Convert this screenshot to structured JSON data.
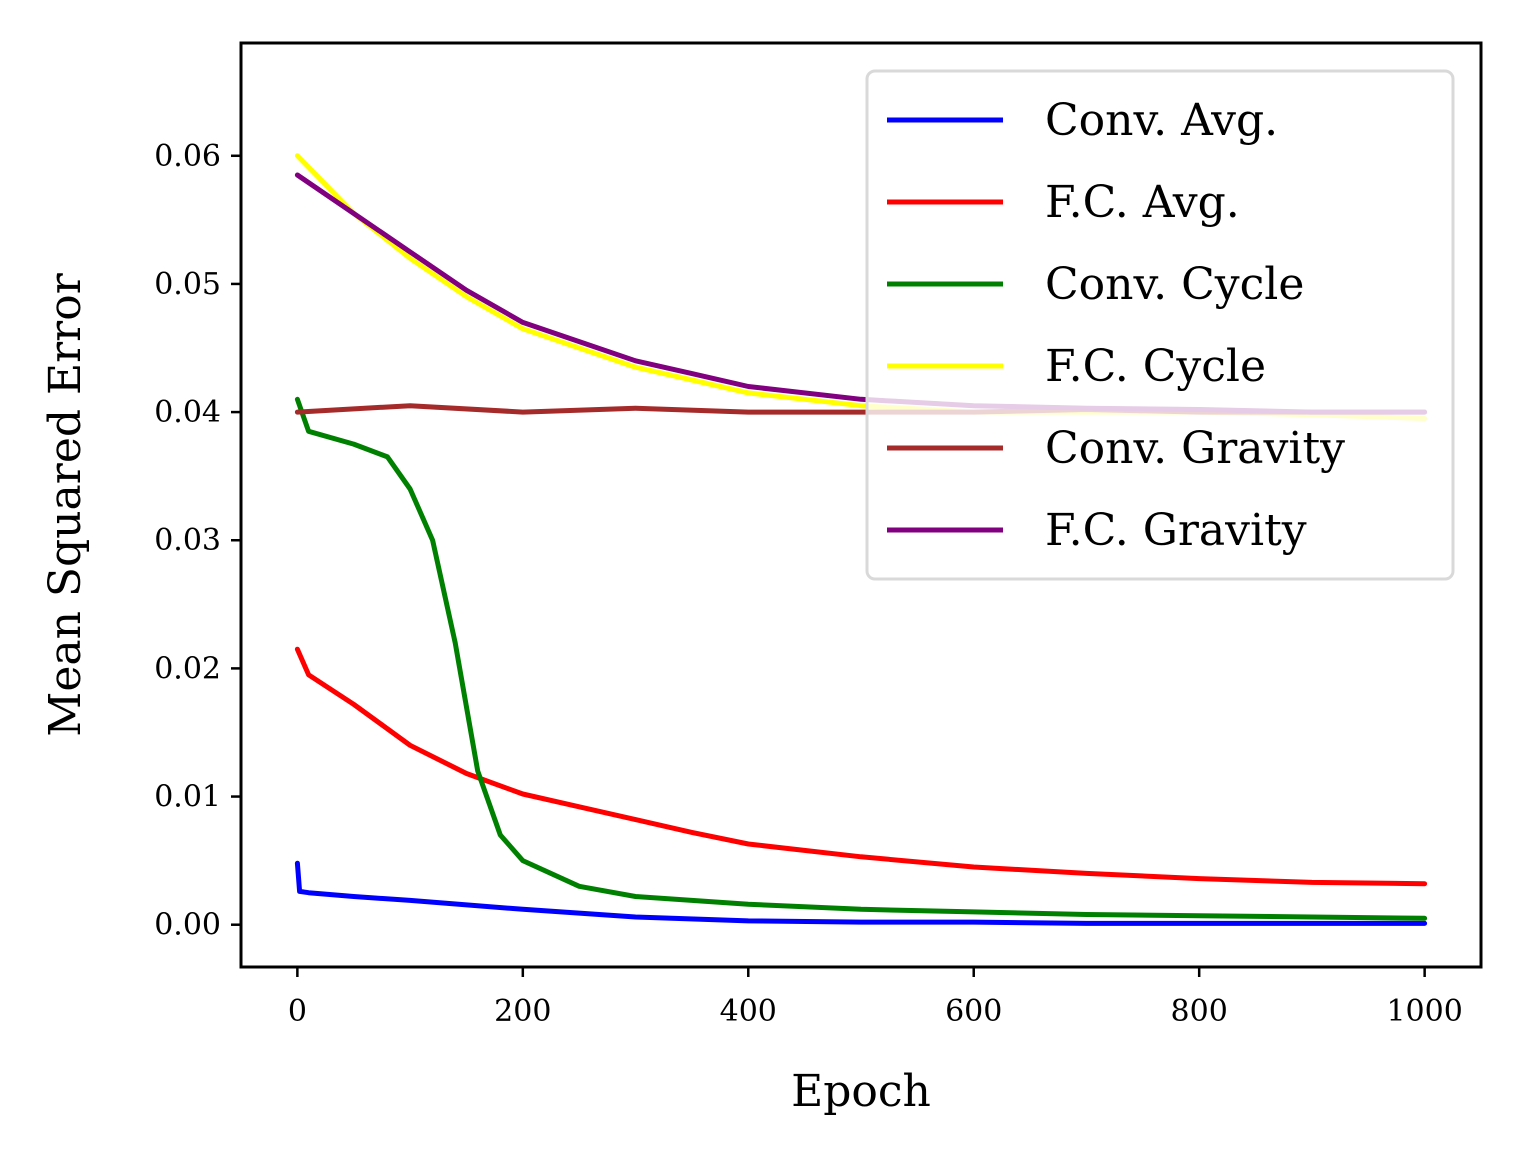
{
  "chart_data": {
    "type": "line",
    "title": "",
    "xlabel": "Epoch",
    "ylabel": "Mean Squared Error",
    "xlim": [
      -50,
      1050
    ],
    "ylim": [
      -0.0033,
      0.0688
    ],
    "xticks": [
      0,
      200,
      400,
      600,
      800,
      1000
    ],
    "xtick_labels": [
      "0",
      "200",
      "400",
      "600",
      "800",
      "1000"
    ],
    "yticks": [
      0.0,
      0.01,
      0.02,
      0.03,
      0.04,
      0.05,
      0.06
    ],
    "ytick_labels": [
      "0.00",
      "0.01",
      "0.02",
      "0.03",
      "0.04",
      "0.05",
      "0.06"
    ],
    "grid": false,
    "legend_position": "top-right",
    "series": [
      {
        "name": "Conv. Avg.",
        "color": "#0000ff",
        "x": [
          0,
          2,
          10,
          50,
          100,
          200,
          300,
          400,
          500,
          600,
          700,
          800,
          900,
          1000
        ],
        "values": [
          0.0048,
          0.0026,
          0.0025,
          0.0022,
          0.0019,
          0.0012,
          0.0006,
          0.0003,
          0.0002,
          0.0002,
          0.0001,
          0.0001,
          0.0001,
          0.0001
        ]
      },
      {
        "name": "F.C. Avg.",
        "color": "#ff0000",
        "x": [
          0,
          10,
          50,
          100,
          150,
          200,
          250,
          300,
          350,
          400,
          500,
          600,
          700,
          800,
          900,
          1000
        ],
        "values": [
          0.0215,
          0.0195,
          0.0172,
          0.014,
          0.0118,
          0.0102,
          0.0092,
          0.0082,
          0.0072,
          0.0063,
          0.0053,
          0.0045,
          0.004,
          0.0036,
          0.0033,
          0.0032
        ]
      },
      {
        "name": "Conv. Cycle",
        "color": "#008000",
        "x": [
          0,
          10,
          50,
          80,
          100,
          120,
          140,
          160,
          180,
          200,
          250,
          300,
          400,
          500,
          600,
          700,
          800,
          900,
          1000
        ],
        "values": [
          0.041,
          0.0385,
          0.0375,
          0.0365,
          0.034,
          0.03,
          0.022,
          0.012,
          0.007,
          0.005,
          0.003,
          0.0022,
          0.0016,
          0.0012,
          0.001,
          0.0008,
          0.0007,
          0.0006,
          0.0005
        ]
      },
      {
        "name": "F.C. Cycle",
        "color": "#ffff00",
        "x": [
          0,
          50,
          100,
          150,
          200,
          250,
          300,
          350,
          400,
          500,
          600,
          700,
          800,
          900,
          1000
        ],
        "values": [
          0.06,
          0.0555,
          0.052,
          0.049,
          0.0465,
          0.045,
          0.0435,
          0.0425,
          0.0415,
          0.0405,
          0.04,
          0.04,
          0.04,
          0.0398,
          0.0395
        ]
      },
      {
        "name": "Conv. Gravity",
        "color": "#a52a2a",
        "x": [
          0,
          100,
          200,
          300,
          400,
          500,
          600,
          700,
          800,
          900,
          1000
        ],
        "values": [
          0.04,
          0.0405,
          0.04,
          0.0403,
          0.04,
          0.04,
          0.04,
          0.0402,
          0.04,
          0.04,
          0.04
        ]
      },
      {
        "name": "F.C. Gravity",
        "color": "#800080",
        "x": [
          0,
          50,
          100,
          150,
          200,
          250,
          300,
          350,
          400,
          500,
          600,
          700,
          800,
          900,
          1000
        ],
        "values": [
          0.0585,
          0.0555,
          0.0525,
          0.0495,
          0.047,
          0.0455,
          0.044,
          0.043,
          0.042,
          0.041,
          0.0405,
          0.0403,
          0.0402,
          0.04,
          0.04
        ]
      }
    ]
  }
}
